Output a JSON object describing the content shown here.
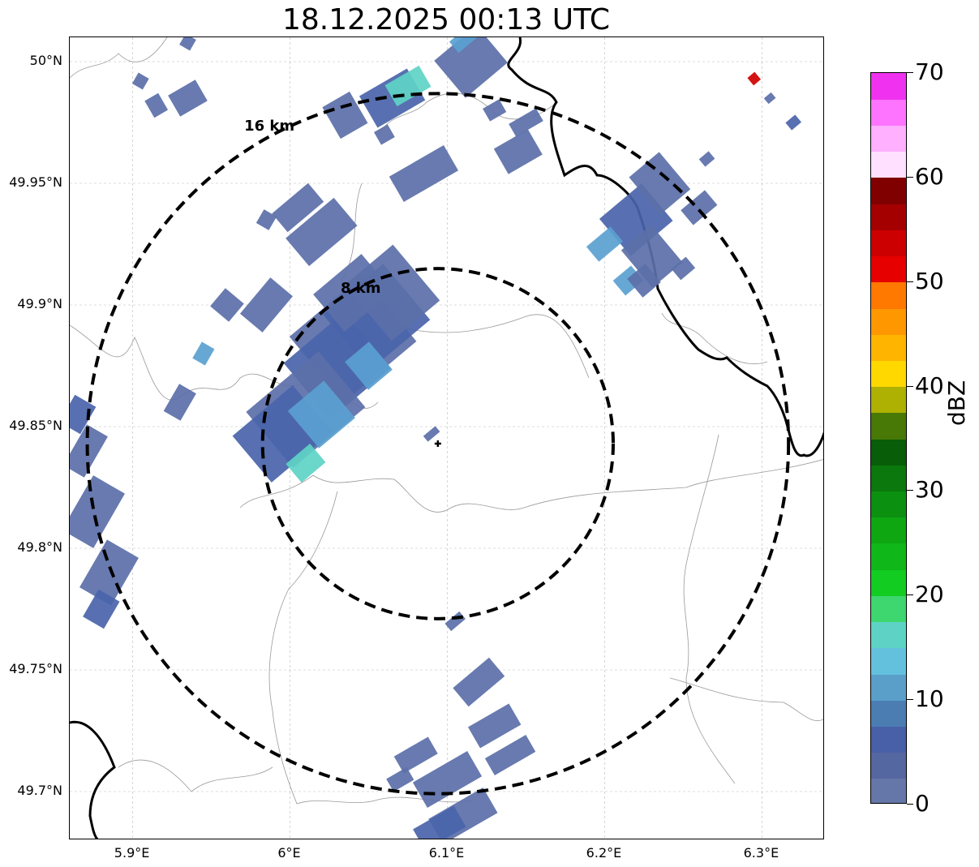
{
  "title": "18.12.2025 00:13 UTC",
  "map": {
    "lon_range": [
      5.86,
      6.34
    ],
    "lat_range": [
      49.68,
      50.01
    ],
    "lat_ticks": [
      {
        "value": 50.0,
        "label": "50°N"
      },
      {
        "value": 49.95,
        "label": "49.95°N"
      },
      {
        "value": 49.9,
        "label": "49.9°N"
      },
      {
        "value": 49.85,
        "label": "49.85°N"
      },
      {
        "value": 49.8,
        "label": "49.8°N"
      },
      {
        "value": 49.75,
        "label": "49.75°N"
      },
      {
        "value": 49.7,
        "label": "49.7°N"
      }
    ],
    "lon_ticks": [
      {
        "value": 5.9,
        "label": "5.9°E"
      },
      {
        "value": 6.0,
        "label": "6°E"
      },
      {
        "value": 6.1,
        "label": "6.1°E"
      },
      {
        "value": 6.2,
        "label": "6.2°E"
      },
      {
        "value": 6.3,
        "label": "6.3°E"
      }
    ],
    "radar_site": {
      "lon": 6.094,
      "lat": 49.843
    },
    "range_rings": [
      {
        "radius_km": 8,
        "label": "8 km"
      },
      {
        "radius_km": 16,
        "label": "16 km"
      }
    ],
    "echo_colors": {
      "weak": "#5b6fa8",
      "moderate": "#4a64aa",
      "light": "#5a9fd0",
      "strong": "#5ed3c5",
      "intense": "#d00000"
    },
    "echo_cells": [
      {
        "lon": 6.04,
        "lat": 49.886,
        "w": 0.06,
        "h": 0.035,
        "angle": -40,
        "c": "weak"
      },
      {
        "lon": 6.055,
        "lat": 49.895,
        "w": 0.05,
        "h": 0.03,
        "angle": -40,
        "c": "moderate"
      },
      {
        "lon": 6.03,
        "lat": 49.875,
        "w": 0.05,
        "h": 0.03,
        "angle": -40,
        "c": "moderate"
      },
      {
        "lon": 6.065,
        "lat": 49.905,
        "w": 0.04,
        "h": 0.03,
        "angle": -40,
        "c": "weak"
      },
      {
        "lon": 6.01,
        "lat": 49.857,
        "w": 0.06,
        "h": 0.03,
        "angle": -40,
        "c": "weak"
      },
      {
        "lon": 5.995,
        "lat": 49.847,
        "w": 0.05,
        "h": 0.025,
        "angle": -40,
        "c": "moderate"
      },
      {
        "lon": 6.02,
        "lat": 49.855,
        "w": 0.03,
        "h": 0.02,
        "angle": -40,
        "c": "light"
      },
      {
        "lon": 6.01,
        "lat": 49.835,
        "w": 0.02,
        "h": 0.01,
        "angle": -40,
        "c": "strong"
      },
      {
        "lon": 6.05,
        "lat": 49.875,
        "w": 0.02,
        "h": 0.015,
        "angle": -40,
        "c": "light"
      },
      {
        "lon": 6.04,
        "lat": 49.905,
        "w": 0.04,
        "h": 0.02,
        "angle": -40,
        "c": "weak"
      },
      {
        "lon": 6.02,
        "lat": 49.93,
        "w": 0.04,
        "h": 0.015,
        "angle": -40,
        "c": "weak"
      },
      {
        "lon": 6.005,
        "lat": 49.94,
        "w": 0.03,
        "h": 0.01,
        "angle": -40,
        "c": "weak"
      },
      {
        "lon": 5.985,
        "lat": 49.9,
        "w": 0.03,
        "h": 0.012,
        "angle": -50,
        "c": "weak"
      },
      {
        "lon": 5.96,
        "lat": 49.9,
        "w": 0.015,
        "h": 0.01,
        "angle": -50,
        "c": "weak"
      },
      {
        "lon": 5.93,
        "lat": 49.86,
        "w": 0.02,
        "h": 0.008,
        "angle": -60,
        "c": "weak"
      },
      {
        "lon": 5.945,
        "lat": 49.88,
        "w": 0.012,
        "h": 0.006,
        "angle": -60,
        "c": "light"
      },
      {
        "lon": 5.985,
        "lat": 49.935,
        "w": 0.01,
        "h": 0.006,
        "angle": -60,
        "c": "weak"
      },
      {
        "lon": 6.085,
        "lat": 49.954,
        "w": 0.04,
        "h": 0.012,
        "angle": -30,
        "c": "weak"
      },
      {
        "lon": 6.06,
        "lat": 49.97,
        "w": 0.01,
        "h": 0.006,
        "angle": -30,
        "c": "weak"
      },
      {
        "lon": 6.065,
        "lat": 49.985,
        "w": 0.035,
        "h": 0.015,
        "angle": -30,
        "c": "moderate"
      },
      {
        "lon": 6.075,
        "lat": 49.99,
        "w": 0.025,
        "h": 0.01,
        "angle": -30,
        "c": "strong"
      },
      {
        "lon": 6.035,
        "lat": 49.978,
        "w": 0.02,
        "h": 0.015,
        "angle": -30,
        "c": "weak"
      },
      {
        "lon": 6.115,
        "lat": 50.0,
        "w": 0.035,
        "h": 0.02,
        "angle": -40,
        "c": "weak"
      },
      {
        "lon": 6.11,
        "lat": 50.009,
        "w": 0.015,
        "h": 0.006,
        "angle": -40,
        "c": "light"
      },
      {
        "lon": 5.935,
        "lat": 49.985,
        "w": 0.02,
        "h": 0.01,
        "angle": -30,
        "c": "weak"
      },
      {
        "lon": 5.915,
        "lat": 49.982,
        "w": 0.01,
        "h": 0.008,
        "angle": -30,
        "c": "weak"
      },
      {
        "lon": 5.905,
        "lat": 49.992,
        "w": 0.008,
        "h": 0.005,
        "angle": -60,
        "c": "weak"
      },
      {
        "lon": 5.935,
        "lat": 50.008,
        "w": 0.008,
        "h": 0.005,
        "angle": -60,
        "c": "weak"
      },
      {
        "lon": 6.145,
        "lat": 49.963,
        "w": 0.025,
        "h": 0.012,
        "angle": -30,
        "c": "weak"
      },
      {
        "lon": 6.15,
        "lat": 49.975,
        "w": 0.02,
        "h": 0.006,
        "angle": -30,
        "c": "weak"
      },
      {
        "lon": 6.13,
        "lat": 49.98,
        "w": 0.012,
        "h": 0.006,
        "angle": -30,
        "c": "weak"
      },
      {
        "lon": 6.22,
        "lat": 49.935,
        "w": 0.035,
        "h": 0.02,
        "angle": -40,
        "c": "moderate"
      },
      {
        "lon": 6.235,
        "lat": 49.95,
        "w": 0.025,
        "h": 0.02,
        "angle": -40,
        "c": "weak"
      },
      {
        "lon": 6.23,
        "lat": 49.92,
        "w": 0.025,
        "h": 0.02,
        "angle": -40,
        "c": "weak"
      },
      {
        "lon": 6.215,
        "lat": 49.91,
        "w": 0.015,
        "h": 0.008,
        "angle": -40,
        "c": "light"
      },
      {
        "lon": 6.225,
        "lat": 49.91,
        "w": 0.015,
        "h": 0.01,
        "angle": -40,
        "c": "weak"
      },
      {
        "lon": 6.2,
        "lat": 49.925,
        "w": 0.02,
        "h": 0.008,
        "angle": -40,
        "c": "light"
      },
      {
        "lon": 6.26,
        "lat": 49.94,
        "w": 0.02,
        "h": 0.008,
        "angle": -40,
        "c": "weak"
      },
      {
        "lon": 6.25,
        "lat": 49.915,
        "w": 0.012,
        "h": 0.006,
        "angle": -40,
        "c": "weak"
      },
      {
        "lon": 6.265,
        "lat": 49.96,
        "w": 0.008,
        "h": 0.004,
        "angle": -40,
        "c": "weak"
      },
      {
        "lon": 6.295,
        "lat": 49.993,
        "w": 0.006,
        "h": 0.004,
        "angle": -40,
        "c": "intense"
      },
      {
        "lon": 6.305,
        "lat": 49.985,
        "w": 0.006,
        "h": 0.003,
        "angle": -40,
        "c": "weak"
      },
      {
        "lon": 6.32,
        "lat": 49.975,
        "w": 0.008,
        "h": 0.004,
        "angle": -40,
        "c": "moderate"
      },
      {
        "lon": 5.875,
        "lat": 49.815,
        "w": 0.04,
        "h": 0.015,
        "angle": -60,
        "c": "weak"
      },
      {
        "lon": 5.885,
        "lat": 49.79,
        "w": 0.035,
        "h": 0.015,
        "angle": -60,
        "c": "weak"
      },
      {
        "lon": 5.87,
        "lat": 49.84,
        "w": 0.03,
        "h": 0.01,
        "angle": -60,
        "c": "weak"
      },
      {
        "lon": 5.88,
        "lat": 49.775,
        "w": 0.02,
        "h": 0.01,
        "angle": -60,
        "c": "moderate"
      },
      {
        "lon": 5.865,
        "lat": 49.855,
        "w": 0.02,
        "h": 0.01,
        "angle": -60,
        "c": "moderate"
      },
      {
        "lon": 6.12,
        "lat": 49.745,
        "w": 0.03,
        "h": 0.01,
        "angle": -40,
        "c": "weak"
      },
      {
        "lon": 6.105,
        "lat": 49.77,
        "w": 0.012,
        "h": 0.004,
        "angle": -40,
        "c": "weak"
      },
      {
        "lon": 6.13,
        "lat": 49.727,
        "w": 0.03,
        "h": 0.01,
        "angle": -30,
        "c": "weak"
      },
      {
        "lon": 6.14,
        "lat": 49.715,
        "w": 0.03,
        "h": 0.008,
        "angle": -30,
        "c": "weak"
      },
      {
        "lon": 6.1,
        "lat": 49.705,
        "w": 0.04,
        "h": 0.012,
        "angle": -30,
        "c": "weak"
      },
      {
        "lon": 6.08,
        "lat": 49.715,
        "w": 0.025,
        "h": 0.008,
        "angle": -30,
        "c": "weak"
      },
      {
        "lon": 6.07,
        "lat": 49.705,
        "w": 0.015,
        "h": 0.006,
        "angle": -30,
        "c": "weak"
      },
      {
        "lon": 6.11,
        "lat": 49.69,
        "w": 0.04,
        "h": 0.012,
        "angle": -30,
        "c": "weak"
      },
      {
        "lon": 6.095,
        "lat": 49.685,
        "w": 0.03,
        "h": 0.01,
        "angle": -30,
        "c": "moderate"
      },
      {
        "lon": 6.09,
        "lat": 49.847,
        "w": 0.01,
        "h": 0.003,
        "angle": -40,
        "c": "weak"
      }
    ]
  },
  "colorbar": {
    "label": "dBZ",
    "min": 0,
    "max": 70,
    "ticks": [
      {
        "value": 0,
        "label": "0"
      },
      {
        "value": 10,
        "label": "10"
      },
      {
        "value": 20,
        "label": "20"
      },
      {
        "value": 30,
        "label": "30"
      },
      {
        "value": 40,
        "label": "40"
      },
      {
        "value": 50,
        "label": "50"
      },
      {
        "value": 60,
        "label": "60"
      },
      {
        "value": 70,
        "label": "70"
      }
    ],
    "bins": [
      "#6576a8",
      "#5567a0",
      "#4860a7",
      "#4b7db3",
      "#599fc9",
      "#63c1de",
      "#5ed3c5",
      "#3ed66f",
      "#12cc22",
      "#10b718",
      "#0ea712",
      "#0c9010",
      "#0a780c",
      "#085e08",
      "#487806",
      "#aeb002",
      "#ffd800",
      "#ffb400",
      "#ff9800",
      "#ff7800",
      "#e60000",
      "#cc0000",
      "#a40000",
      "#800000",
      "#ffe0ff",
      "#ffb0ff",
      "#ff74ff",
      "#f032f0"
    ]
  }
}
